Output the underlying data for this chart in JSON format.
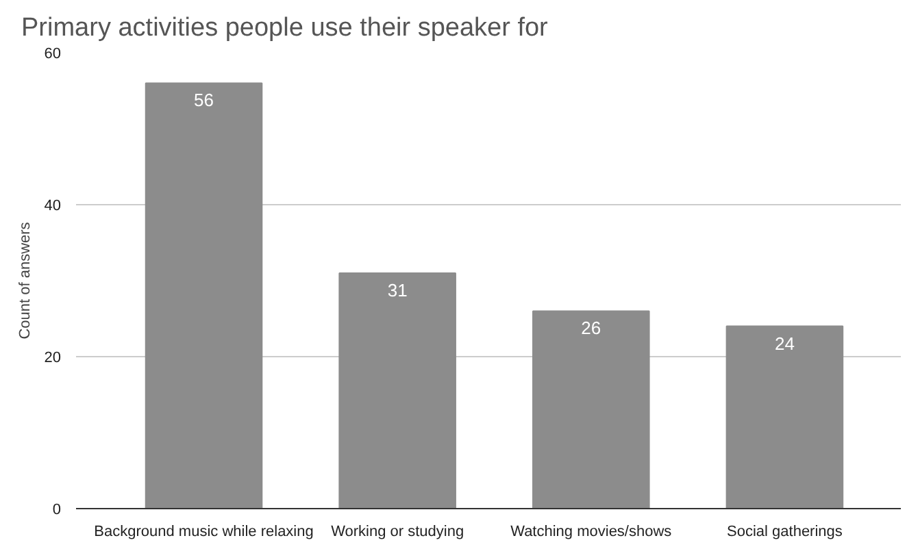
{
  "chart_data": {
    "type": "bar",
    "title": "Primary activities people use their speaker for",
    "ylabel": "Count of answers",
    "categories": [
      "Background music while relaxing",
      "Working or studying",
      "Watching movies/shows",
      "Social gatherings"
    ],
    "values": [
      56,
      31,
      26,
      24
    ],
    "color": "#8c8c8c",
    "ylim": [
      0,
      60
    ],
    "yticks": [
      0,
      20,
      40,
      60
    ],
    "grid": "y",
    "data_labels": true
  }
}
